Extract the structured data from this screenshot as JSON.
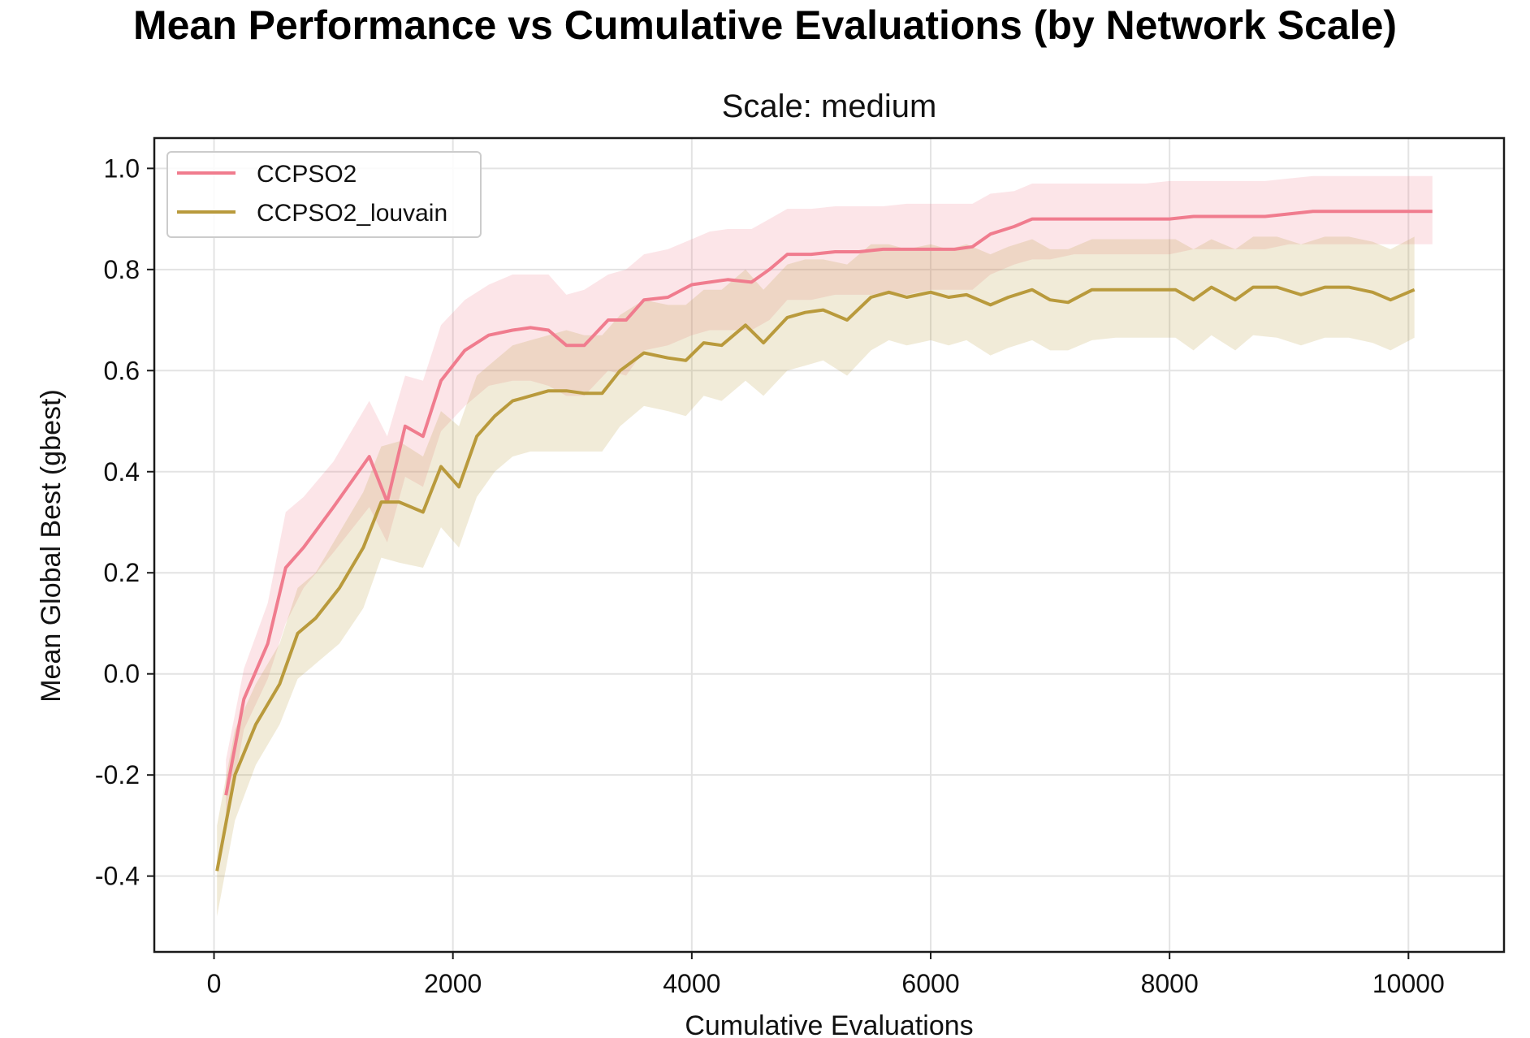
{
  "figure": {
    "suptitle": "Mean Performance vs Cumulative Evaluations (by Network Scale)"
  },
  "chart_data": {
    "type": "line",
    "title": "Scale: medium",
    "xlabel": "Cumulative Evaluations",
    "ylabel": "Mean Global Best (gbest)",
    "xlim": [
      -500,
      10800
    ],
    "ylim": [
      -0.55,
      1.06
    ],
    "xticks": [
      0,
      2000,
      4000,
      6000,
      8000,
      10000
    ],
    "xtick_labels": [
      "0",
      "2000",
      "4000",
      "6000",
      "8000",
      "10000"
    ],
    "yticks": [
      -0.4,
      -0.2,
      0.0,
      0.2,
      0.4,
      0.6,
      0.8,
      1.0
    ],
    "ytick_labels": [
      "-0.4",
      "-0.2",
      "0.0",
      "0.2",
      "0.4",
      "0.6",
      "0.8",
      "1.0"
    ],
    "grid": true,
    "legend_position": "top-left",
    "series": [
      {
        "name": "CCPSO2",
        "color": "#f07c8e",
        "x": [
          100,
          250,
          450,
          600,
          750,
          1000,
          1300,
          1450,
          1600,
          1750,
          1900,
          2100,
          2300,
          2500,
          2650,
          2800,
          2950,
          3100,
          3300,
          3450,
          3600,
          3800,
          4000,
          4150,
          4300,
          4500,
          4650,
          4800,
          5000,
          5200,
          5400,
          5600,
          5800,
          6000,
          6200,
          6350,
          6500,
          6700,
          6850,
          7000,
          7200,
          7400,
          7600,
          7800,
          8000,
          8200,
          8400,
          8600,
          8800,
          9000,
          9200,
          9400,
          9600,
          9800,
          10000,
          10200
        ],
        "y": [
          -0.24,
          -0.05,
          0.06,
          0.21,
          0.25,
          0.33,
          0.43,
          0.34,
          0.49,
          0.47,
          0.58,
          0.64,
          0.67,
          0.68,
          0.685,
          0.68,
          0.65,
          0.65,
          0.7,
          0.7,
          0.74,
          0.745,
          0.77,
          0.775,
          0.78,
          0.775,
          0.8,
          0.83,
          0.83,
          0.835,
          0.835,
          0.84,
          0.84,
          0.84,
          0.84,
          0.845,
          0.87,
          0.885,
          0.9,
          0.9,
          0.9,
          0.9,
          0.9,
          0.9,
          0.9,
          0.905,
          0.905,
          0.905,
          0.905,
          0.91,
          0.915,
          0.915,
          0.915,
          0.915,
          0.915,
          0.915
        ],
        "lower": [
          -0.31,
          -0.11,
          -0.01,
          0.1,
          0.17,
          0.24,
          0.33,
          0.26,
          0.39,
          0.37,
          0.48,
          0.53,
          0.57,
          0.58,
          0.58,
          0.57,
          0.55,
          0.55,
          0.6,
          0.59,
          0.64,
          0.65,
          0.67,
          0.68,
          0.68,
          0.68,
          0.7,
          0.74,
          0.74,
          0.75,
          0.75,
          0.75,
          0.75,
          0.76,
          0.76,
          0.76,
          0.79,
          0.81,
          0.82,
          0.82,
          0.83,
          0.83,
          0.83,
          0.83,
          0.83,
          0.84,
          0.84,
          0.84,
          0.84,
          0.85,
          0.85,
          0.85,
          0.85,
          0.85,
          0.85,
          0.85
        ],
        "upper": [
          -0.17,
          0.01,
          0.14,
          0.32,
          0.35,
          0.42,
          0.54,
          0.47,
          0.59,
          0.58,
          0.69,
          0.74,
          0.77,
          0.79,
          0.79,
          0.79,
          0.75,
          0.76,
          0.79,
          0.8,
          0.83,
          0.84,
          0.86,
          0.875,
          0.88,
          0.88,
          0.9,
          0.92,
          0.92,
          0.925,
          0.925,
          0.925,
          0.93,
          0.93,
          0.93,
          0.93,
          0.95,
          0.955,
          0.97,
          0.97,
          0.97,
          0.97,
          0.97,
          0.97,
          0.975,
          0.975,
          0.975,
          0.975,
          0.975,
          0.98,
          0.985,
          0.985,
          0.985,
          0.985,
          0.985,
          0.985
        ]
      },
      {
        "name": "CCPSO2_louvain",
        "color": "#b99a3c",
        "x": [
          25,
          175,
          350,
          550,
          700,
          850,
          1050,
          1250,
          1400,
          1550,
          1750,
          1900,
          2050,
          2200,
          2350,
          2500,
          2650,
          2800,
          2950,
          3100,
          3250,
          3400,
          3600,
          3800,
          3950,
          4100,
          4250,
          4450,
          4600,
          4800,
          4950,
          5100,
          5300,
          5500,
          5650,
          5800,
          6000,
          6150,
          6300,
          6500,
          6650,
          6850,
          7000,
          7150,
          7350,
          7550,
          7700,
          7850,
          8050,
          8200,
          8350,
          8550,
          8700,
          8900,
          9100,
          9300,
          9500,
          9700,
          9850,
          10050
        ],
        "y": [
          -0.39,
          -0.2,
          -0.1,
          -0.02,
          0.08,
          0.11,
          0.17,
          0.25,
          0.34,
          0.34,
          0.32,
          0.41,
          0.37,
          0.47,
          0.51,
          0.54,
          0.55,
          0.56,
          0.56,
          0.555,
          0.555,
          0.6,
          0.635,
          0.625,
          0.62,
          0.655,
          0.65,
          0.69,
          0.655,
          0.705,
          0.715,
          0.72,
          0.7,
          0.745,
          0.755,
          0.745,
          0.755,
          0.745,
          0.75,
          0.73,
          0.745,
          0.76,
          0.74,
          0.735,
          0.76,
          0.76,
          0.76,
          0.76,
          0.76,
          0.74,
          0.765,
          0.74,
          0.765,
          0.765,
          0.75,
          0.765,
          0.765,
          0.755,
          0.74,
          0.76
        ],
        "lower": [
          -0.48,
          -0.29,
          -0.18,
          -0.1,
          -0.01,
          0.02,
          0.06,
          0.13,
          0.23,
          0.22,
          0.21,
          0.29,
          0.25,
          0.35,
          0.4,
          0.43,
          0.44,
          0.44,
          0.44,
          0.44,
          0.44,
          0.49,
          0.53,
          0.52,
          0.51,
          0.55,
          0.54,
          0.58,
          0.55,
          0.6,
          0.61,
          0.62,
          0.59,
          0.64,
          0.66,
          0.65,
          0.66,
          0.65,
          0.66,
          0.63,
          0.645,
          0.66,
          0.64,
          0.64,
          0.66,
          0.665,
          0.665,
          0.665,
          0.665,
          0.64,
          0.67,
          0.64,
          0.67,
          0.665,
          0.65,
          0.665,
          0.665,
          0.655,
          0.64,
          0.665
        ],
        "upper": [
          -0.3,
          -0.11,
          -0.02,
          0.06,
          0.17,
          0.2,
          0.28,
          0.36,
          0.45,
          0.46,
          0.43,
          0.52,
          0.49,
          0.59,
          0.62,
          0.65,
          0.66,
          0.67,
          0.68,
          0.67,
          0.67,
          0.71,
          0.74,
          0.73,
          0.73,
          0.76,
          0.76,
          0.8,
          0.76,
          0.81,
          0.82,
          0.82,
          0.81,
          0.85,
          0.85,
          0.84,
          0.85,
          0.84,
          0.85,
          0.83,
          0.845,
          0.86,
          0.84,
          0.84,
          0.86,
          0.86,
          0.86,
          0.86,
          0.86,
          0.84,
          0.86,
          0.84,
          0.865,
          0.865,
          0.85,
          0.865,
          0.865,
          0.855,
          0.84,
          0.865
        ]
      }
    ]
  }
}
